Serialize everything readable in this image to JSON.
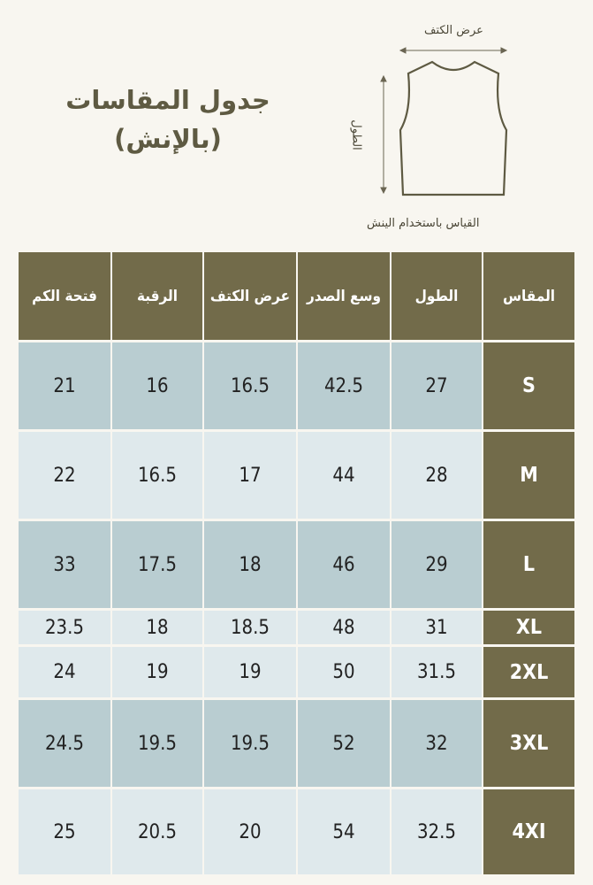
{
  "title": {
    "line1": "جدول المقاسات",
    "line2": "(بالإنش)"
  },
  "diagram": {
    "shoulder_label": "عرض الكتف",
    "length_label": "الطول",
    "note": "القياس باستخدام الينش"
  },
  "colors": {
    "header": "#726b4a",
    "row_dark": "#b9cdd1",
    "row_light": "#dfe9ec",
    "background": "#f8f6f0"
  },
  "table": {
    "headers": [
      "المقاس",
      "الطول",
      "وسع الصدر",
      "عرض الكتف",
      "الرقبة",
      "فتحة الكم"
    ],
    "rows": [
      {
        "shade": "dark",
        "cells": [
          "S",
          "27",
          "42.5",
          "16.5",
          "16",
          "21"
        ]
      },
      {
        "shade": "light",
        "cells": [
          "M",
          "28",
          "44",
          "17",
          "16.5",
          "22"
        ]
      },
      {
        "shade": "dark",
        "cells": [
          "L",
          "29",
          "46",
          "18",
          "17.5",
          "33"
        ]
      },
      {
        "shade": "light",
        "cells": [
          "XL",
          "31",
          "48",
          "18.5",
          "18",
          "23.5"
        ]
      },
      {
        "shade": "light",
        "cells": [
          "2XL",
          "31.5",
          "50",
          "19",
          "19",
          "24"
        ]
      },
      {
        "shade": "dark",
        "cells": [
          "3XL",
          "32",
          "52",
          "19.5",
          "19.5",
          "24.5"
        ]
      },
      {
        "shade": "light",
        "cells": [
          "4XI",
          "32.5",
          "54",
          "20",
          "20.5",
          "25"
        ]
      }
    ]
  }
}
